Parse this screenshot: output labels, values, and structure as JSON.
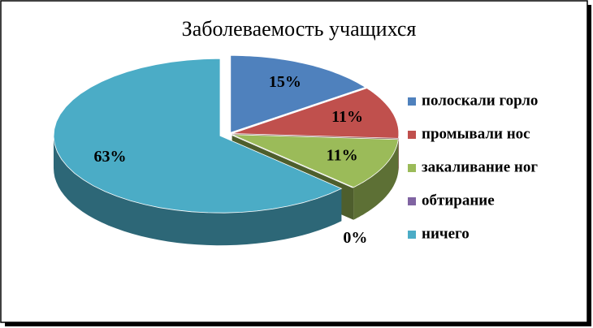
{
  "chart_data": {
    "type": "pie",
    "title": "Заболеваемость учащихся",
    "categories": [
      "полоскали горло",
      "промывали нос",
      "закаливание ног",
      "обтирание",
      "ничего"
    ],
    "values": [
      15,
      11,
      11,
      0,
      63
    ],
    "value_labels": [
      "15%",
      "11%",
      "11%",
      "0%",
      "63%"
    ],
    "colors": [
      "#4f81bd",
      "#c0504d",
      "#9bbb59",
      "#8064a2",
      "#4bacc6"
    ],
    "legend": "right"
  }
}
